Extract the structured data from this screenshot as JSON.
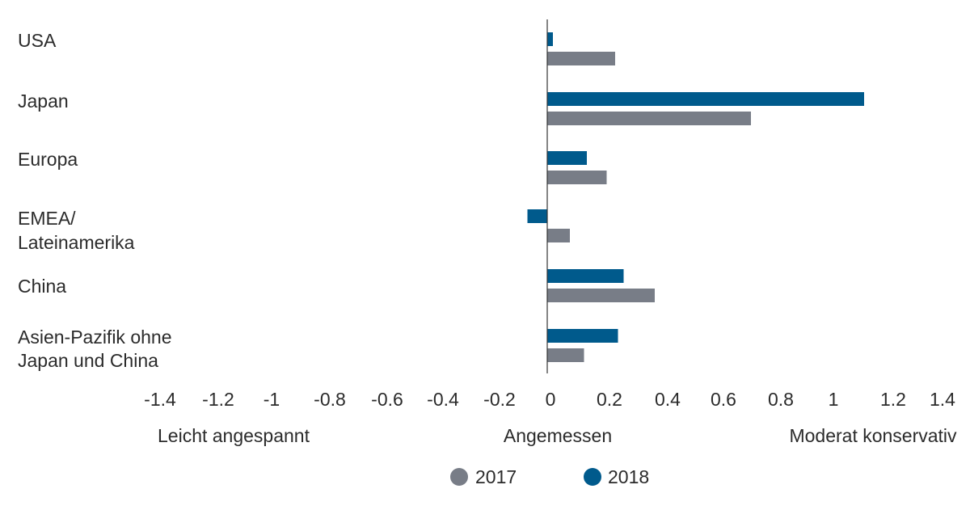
{
  "chart_data": {
    "type": "bar",
    "orientation": "horizontal",
    "categories": [
      [
        "USA"
      ],
      [
        "Japan"
      ],
      [
        "Europa"
      ],
      [
        "EMEA/",
        "Lateinamerika"
      ],
      [
        "China"
      ],
      [
        "Asien-Pazifik ohne",
        "Japan und China"
      ]
    ],
    "series": [
      {
        "name": "2018",
        "color": "#005a8c",
        "values": [
          0.02,
          1.12,
          0.14,
          -0.07,
          0.27,
          0.25
        ]
      },
      {
        "name": "2017",
        "color": "#787d87",
        "values": [
          0.24,
          0.72,
          0.21,
          0.08,
          0.38,
          0.13
        ]
      }
    ],
    "xlim": [
      -1.4,
      1.4
    ],
    "x_ticks": [
      "-1.4",
      "-1.2",
      "-1",
      "-0.8",
      "-0.6",
      "-0.4",
      "-0.2",
      "0",
      "0.2",
      "0.4",
      "0.6",
      "0.8",
      "1",
      "1.2",
      "1.4"
    ],
    "zone_labels": [
      "Leicht angespannt",
      "Angemessen",
      "Moderat konservativ"
    ],
    "legend": [
      {
        "label": "2017",
        "color": "#787d87"
      },
      {
        "label": "2018",
        "color": "#005a8c"
      }
    ],
    "legend_position": "bottom-center",
    "grid": false
  }
}
